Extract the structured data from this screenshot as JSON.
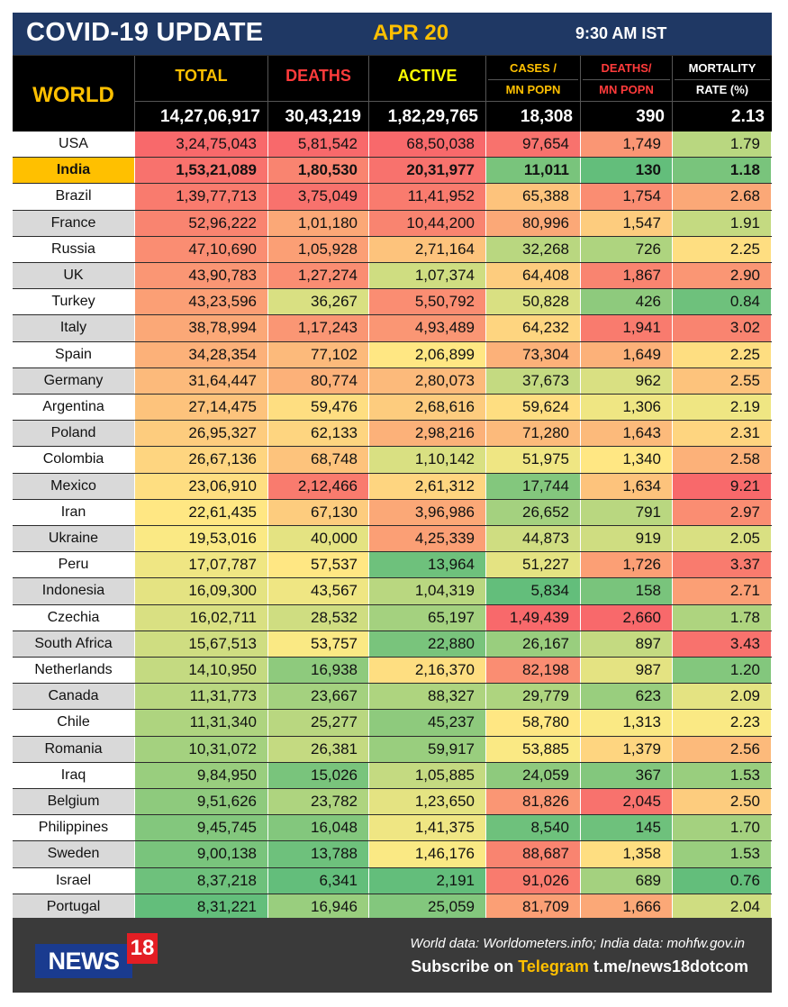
{
  "header": {
    "title": "COVID-19 UPDATE",
    "date": "APR 20",
    "time": "9:30 AM IST"
  },
  "colors": {
    "header_bg": "#1f3864",
    "accent_yellow": "#ffc000",
    "deaths_red": "#ff3b3b",
    "active_yellow": "#ffff00"
  },
  "world": {
    "label": "WORLD",
    "total": "14,27,06,917",
    "deaths": "30,43,219",
    "active": "1,82,29,765",
    "cases_mn": "18,308",
    "deaths_mn": "390",
    "mortality": "2.13"
  },
  "columns": {
    "total": "TOTAL",
    "deaths": "DEATHS",
    "active": "ACTIVE",
    "cases_mn_1": "CASES /",
    "cases_mn_2": "MN POPN",
    "deaths_mn_1": "DEATHS/",
    "deaths_mn_2": "MN POPN",
    "mortality_1": "MORTALITY",
    "mortality_2": "RATE (%)"
  },
  "rows": [
    {
      "country": "USA",
      "total": "3,24,75,043",
      "deaths": "5,81,542",
      "active": "68,50,038",
      "cases_mn": "97,654",
      "deaths_mn": "1,749",
      "mortality": "1.79"
    },
    {
      "country": "India",
      "total": "1,53,21,089",
      "deaths": "1,80,530",
      "active": "20,31,977",
      "cases_mn": "11,011",
      "deaths_mn": "130",
      "mortality": "1.18"
    },
    {
      "country": "Brazil",
      "total": "1,39,77,713",
      "deaths": "3,75,049",
      "active": "11,41,952",
      "cases_mn": "65,388",
      "deaths_mn": "1,754",
      "mortality": "2.68"
    },
    {
      "country": "France",
      "total": "52,96,222",
      "deaths": "1,01,180",
      "active": "10,44,200",
      "cases_mn": "80,996",
      "deaths_mn": "1,547",
      "mortality": "1.91"
    },
    {
      "country": "Russia",
      "total": "47,10,690",
      "deaths": "1,05,928",
      "active": "2,71,164",
      "cases_mn": "32,268",
      "deaths_mn": "726",
      "mortality": "2.25"
    },
    {
      "country": "UK",
      "total": "43,90,783",
      "deaths": "1,27,274",
      "active": "1,07,374",
      "cases_mn": "64,408",
      "deaths_mn": "1,867",
      "mortality": "2.90"
    },
    {
      "country": "Turkey",
      "total": "43,23,596",
      "deaths": "36,267",
      "active": "5,50,792",
      "cases_mn": "50,828",
      "deaths_mn": "426",
      "mortality": "0.84"
    },
    {
      "country": "Italy",
      "total": "38,78,994",
      "deaths": "1,17,243",
      "active": "4,93,489",
      "cases_mn": "64,232",
      "deaths_mn": "1,941",
      "mortality": "3.02"
    },
    {
      "country": "Spain",
      "total": "34,28,354",
      "deaths": "77,102",
      "active": "2,06,899",
      "cases_mn": "73,304",
      "deaths_mn": "1,649",
      "mortality": "2.25"
    },
    {
      "country": "Germany",
      "total": "31,64,447",
      "deaths": "80,774",
      "active": "2,80,073",
      "cases_mn": "37,673",
      "deaths_mn": "962",
      "mortality": "2.55"
    },
    {
      "country": "Argentina",
      "total": "27,14,475",
      "deaths": "59,476",
      "active": "2,68,616",
      "cases_mn": "59,624",
      "deaths_mn": "1,306",
      "mortality": "2.19"
    },
    {
      "country": "Poland",
      "total": "26,95,327",
      "deaths": "62,133",
      "active": "2,98,216",
      "cases_mn": "71,280",
      "deaths_mn": "1,643",
      "mortality": "2.31"
    },
    {
      "country": "Colombia",
      "total": "26,67,136",
      "deaths": "68,748",
      "active": "1,10,142",
      "cases_mn": "51,975",
      "deaths_mn": "1,340",
      "mortality": "2.58"
    },
    {
      "country": "Mexico",
      "total": "23,06,910",
      "deaths": "2,12,466",
      "active": "2,61,312",
      "cases_mn": "17,744",
      "deaths_mn": "1,634",
      "mortality": "9.21"
    },
    {
      "country": "Iran",
      "total": "22,61,435",
      "deaths": "67,130",
      "active": "3,96,986",
      "cases_mn": "26,652",
      "deaths_mn": "791",
      "mortality": "2.97"
    },
    {
      "country": "Ukraine",
      "total": "19,53,016",
      "deaths": "40,000",
      "active": "4,25,339",
      "cases_mn": "44,873",
      "deaths_mn": "919",
      "mortality": "2.05"
    },
    {
      "country": "Peru",
      "total": "17,07,787",
      "deaths": "57,537",
      "active": "13,964",
      "cases_mn": "51,227",
      "deaths_mn": "1,726",
      "mortality": "3.37"
    },
    {
      "country": "Indonesia",
      "total": "16,09,300",
      "deaths": "43,567",
      "active": "1,04,319",
      "cases_mn": "5,834",
      "deaths_mn": "158",
      "mortality": "2.71"
    },
    {
      "country": "Czechia",
      "total": "16,02,711",
      "deaths": "28,532",
      "active": "65,197",
      "cases_mn": "1,49,439",
      "deaths_mn": "2,660",
      "mortality": "1.78"
    },
    {
      "country": "South Africa",
      "total": "15,67,513",
      "deaths": "53,757",
      "active": "22,880",
      "cases_mn": "26,167",
      "deaths_mn": "897",
      "mortality": "3.43"
    },
    {
      "country": "Netherlands",
      "total": "14,10,950",
      "deaths": "16,938",
      "active": "2,16,370",
      "cases_mn": "82,198",
      "deaths_mn": "987",
      "mortality": "1.20"
    },
    {
      "country": "Canada",
      "total": "11,31,773",
      "deaths": "23,667",
      "active": "88,327",
      "cases_mn": "29,779",
      "deaths_mn": "623",
      "mortality": "2.09"
    },
    {
      "country": "Chile",
      "total": "11,31,340",
      "deaths": "25,277",
      "active": "45,237",
      "cases_mn": "58,780",
      "deaths_mn": "1,313",
      "mortality": "2.23"
    },
    {
      "country": "Romania",
      "total": "10,31,072",
      "deaths": "26,381",
      "active": "59,917",
      "cases_mn": "53,885",
      "deaths_mn": "1,379",
      "mortality": "2.56"
    },
    {
      "country": "Iraq",
      "total": "9,84,950",
      "deaths": "15,026",
      "active": "1,05,885",
      "cases_mn": "24,059",
      "deaths_mn": "367",
      "mortality": "1.53"
    },
    {
      "country": "Belgium",
      "total": "9,51,626",
      "deaths": "23,782",
      "active": "1,23,650",
      "cases_mn": "81,826",
      "deaths_mn": "2,045",
      "mortality": "2.50"
    },
    {
      "country": "Philippines",
      "total": "9,45,745",
      "deaths": "16,048",
      "active": "1,41,375",
      "cases_mn": "8,540",
      "deaths_mn": "145",
      "mortality": "1.70"
    },
    {
      "country": "Sweden",
      "total": "9,00,138",
      "deaths": "13,788",
      "active": "1,46,176",
      "cases_mn": "88,687",
      "deaths_mn": "1,358",
      "mortality": "1.53"
    },
    {
      "country": "Israel",
      "total": "8,37,218",
      "deaths": "6,341",
      "active": "2,191",
      "cases_mn": "91,026",
      "deaths_mn": "689",
      "mortality": "0.76"
    },
    {
      "country": "Portugal",
      "total": "8,31,221",
      "deaths": "16,946",
      "active": "25,059",
      "cases_mn": "81,709",
      "deaths_mn": "1,666",
      "mortality": "2.04"
    }
  ],
  "footer": {
    "logo_news": "NEWS",
    "logo_18": "18",
    "source": "World data: Worldometers.info; India data: mohfw.gov.in",
    "subscribe_prefix": "Subscribe on",
    "subscribe_platform": "Telegram",
    "subscribe_link": "t.me/news18dotcom"
  }
}
